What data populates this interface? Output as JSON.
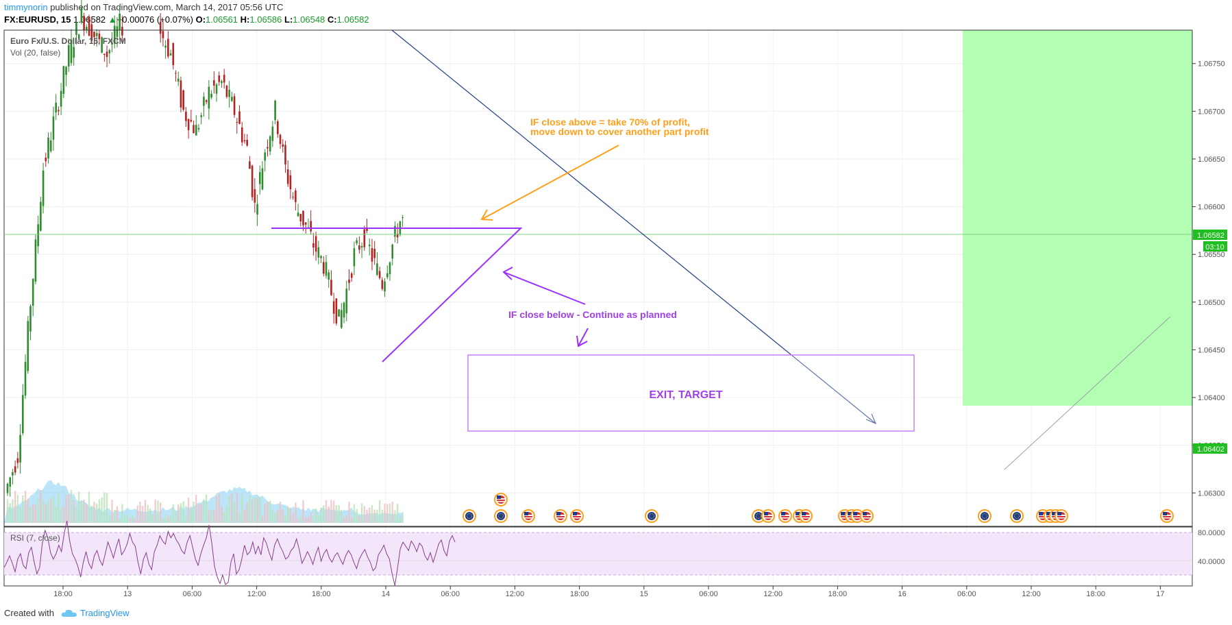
{
  "header": {
    "username": "timmynorin",
    "published": "published on TradingView.com, March 14, 2017 05:56 UTC",
    "symbol": "FX:EURUSD, 15",
    "last": "1.06582",
    "change": "+0.00076 (+0.07%)",
    "o_label": "O:",
    "o": "1.06561",
    "h_label": "H:",
    "h": "1.06586",
    "l_label": "L:",
    "l": "1.06548",
    "c_label": "C:",
    "c": "1.06582"
  },
  "legend": {
    "title": "Euro Fx/U.S. Dollar, 15, FXCM",
    "volume": "Vol (20, false)",
    "rsi": "RSI (7, close)"
  },
  "annotations": {
    "orange_line1": "IF close above = take 70% of profit,",
    "orange_line2": "move down to cover another part profit",
    "purple_text": "IF close below - Continue as planned",
    "box_text": "EXIT, TARGET"
  },
  "price_badges": {
    "current": "1.06582",
    "countdown": "03:10",
    "target": "1.06402"
  },
  "footer": {
    "created": "Created with",
    "brand": "TradingView"
  },
  "colors": {
    "up": "#2e8b2e",
    "down": "#b22222",
    "purple": "#9b30ff",
    "orange": "#ff9f1a",
    "navy": "#1f3c88",
    "green_zone": "#b3ffb3",
    "badge_green": "#1fbf1f"
  },
  "chart_data": {
    "type": "candlestick",
    "y_axis": {
      "ticks": [
        "1.06750",
        "1.06700",
        "1.06650",
        "1.06600",
        "1.06550",
        "1.06500",
        "1.06450",
        "1.06400",
        "1.06350",
        "1.06300"
      ],
      "range": [
        1.06265,
        1.06785
      ]
    },
    "x_axis": {
      "ticks": [
        "18:00",
        "13",
        "06:00",
        "12:00",
        "18:00",
        "14",
        "06:00",
        "12:00",
        "18:00",
        "15",
        "06:00",
        "12:00",
        "18:00",
        "16",
        "06:00",
        "12:00",
        "18:00",
        "17"
      ]
    },
    "rsi_axis": {
      "ticks": [
        "80.0000",
        "40.0000"
      ]
    },
    "levels": {
      "last_price": 1.06582,
      "target": 1.06402,
      "triangle_top": 1.06587,
      "triangle_apex": 1.06448,
      "target_box": [
        1.06458,
        1.06378
      ]
    },
    "rsi": [
      47,
      52,
      58,
      51,
      43,
      55,
      60,
      49,
      46,
      61,
      66,
      52,
      41,
      47,
      70,
      82,
      75,
      61,
      55,
      60,
      68,
      62,
      79,
      91,
      72,
      60,
      55,
      48,
      38,
      52,
      62,
      51,
      46,
      58,
      63,
      54,
      49,
      60,
      71,
      64,
      56,
      66,
      74,
      59,
      63,
      69,
      79,
      71,
      67,
      52,
      41,
      55,
      61,
      50,
      45,
      62,
      68,
      77,
      72,
      69,
      81,
      75,
      79,
      73,
      69,
      63,
      60,
      71,
      77,
      66,
      55,
      49,
      60,
      68,
      75,
      87,
      70,
      48,
      38,
      32,
      40,
      31,
      33,
      52,
      60,
      41,
      45,
      55,
      68,
      59,
      62,
      71,
      60,
      67,
      59,
      75,
      70,
      61,
      54,
      68,
      74,
      67,
      62,
      55,
      57,
      63,
      66,
      74,
      64,
      51,
      56,
      62,
      57,
      50,
      59,
      66,
      53,
      60,
      64,
      56,
      52,
      58,
      61,
      55,
      50,
      58,
      63,
      59,
      52,
      46,
      55,
      60,
      64,
      57,
      52,
      44,
      47,
      59,
      63,
      68,
      60,
      55,
      41,
      30,
      47,
      65,
      71,
      67,
      63,
      72,
      68,
      62,
      70,
      67,
      58,
      54,
      61,
      52,
      60,
      69,
      73,
      63,
      58,
      72,
      77,
      71
    ]
  }
}
